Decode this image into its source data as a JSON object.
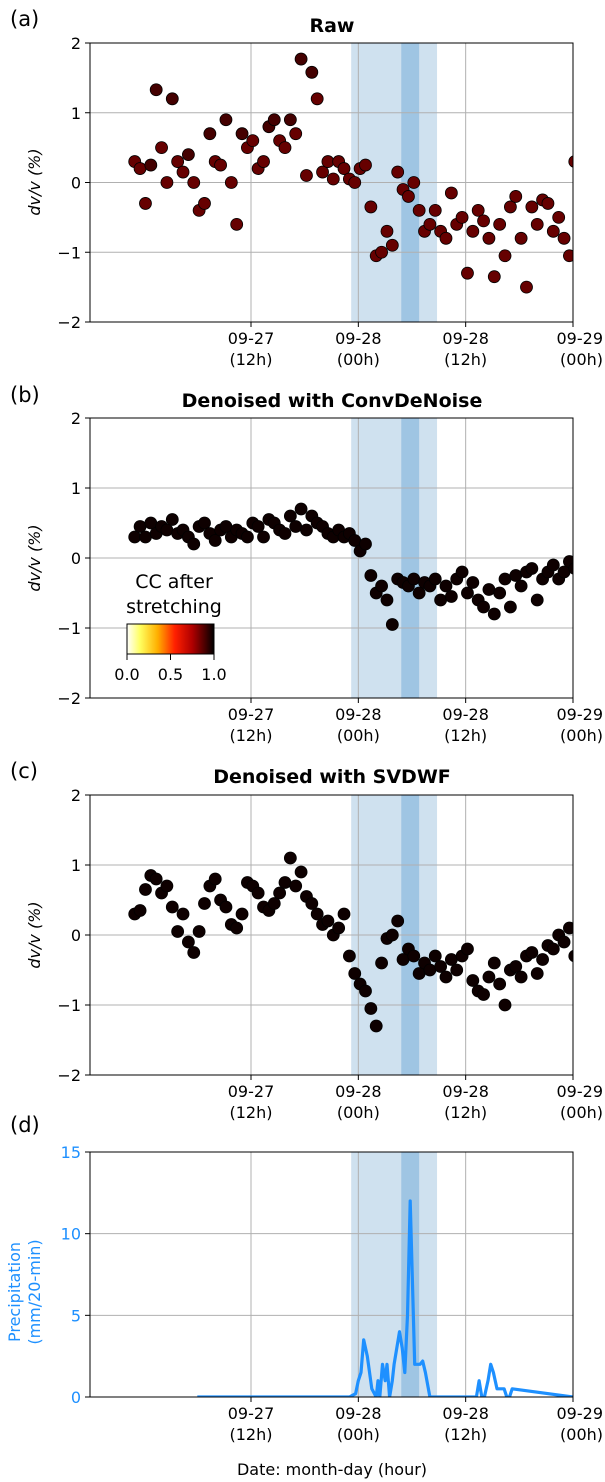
{
  "colors": {
    "light_band": "#cfe1ef",
    "dark_band": "#9fc5e3",
    "precip_line": "#1e90ff",
    "grid": "#b0b0b0",
    "marker_edge": "#000000"
  },
  "chart_data": [
    {
      "type": "scatter",
      "panel_label": "(a)",
      "title": "Raw",
      "ylabel": "dv/v (%)",
      "xlabel": "",
      "ylim": [
        -2,
        2
      ],
      "yticks": [
        "2",
        "1",
        "0",
        "−1",
        "−2"
      ],
      "xticks": [
        {
          "line1": "09-27",
          "line2": "(12h)"
        },
        {
          "line1": "09-28",
          "line2": "(00h)"
        },
        {
          "line1": "09-28",
          "line2": "(12h)"
        },
        {
          "line1": "09-29",
          "line2": "(00h)"
        }
      ],
      "grid": true,
      "shaded_periods_hours": {
        "light": [
          -0.8,
          8.8
        ],
        "dark": [
          4.8,
          6.8
        ]
      },
      "series": [
        {
          "x_hours": [
            -25.0,
            -24.4,
            -23.8,
            -23.2,
            -22.6,
            -22.0,
            -21.4,
            -20.8,
            -20.2,
            -19.6,
            -19.0,
            -18.4,
            -17.8,
            -17.2,
            -16.6,
            -16.0,
            -15.4,
            -14.8,
            -14.2,
            -13.6,
            -13.0,
            -12.4,
            -11.8,
            -11.2,
            -10.6,
            -10.0,
            -9.4,
            -8.8,
            -8.2,
            -7.6,
            -7.0,
            -6.4,
            -5.8,
            -5.2,
            -4.6,
            -4.0,
            -3.4,
            -2.8,
            -2.2,
            -1.6,
            -1.0,
            -0.4,
            0.2,
            0.8,
            1.4,
            2.0,
            2.6,
            3.2,
            3.8,
            4.4,
            5.0,
            5.6,
            6.2,
            6.8,
            7.4,
            8.0,
            8.6,
            9.2,
            9.8,
            10.4,
            11.0,
            11.6,
            12.2,
            12.8,
            13.4,
            14.0,
            14.6,
            15.2,
            15.8,
            16.4,
            17.0,
            17.6,
            18.2,
            18.8,
            19.4,
            20.0,
            20.6,
            21.2,
            21.8,
            22.4,
            23.0,
            23.6,
            24.2,
            24.8
          ],
          "y": [
            0.3,
            0.2,
            -0.3,
            0.25,
            1.33,
            0.5,
            0.0,
            1.2,
            0.3,
            0.15,
            0.4,
            0.0,
            -0.4,
            -0.3,
            0.7,
            0.3,
            0.25,
            0.9,
            0.0,
            -0.6,
            0.7,
            0.5,
            0.6,
            0.2,
            0.3,
            0.8,
            0.9,
            0.6,
            0.5,
            0.9,
            0.7,
            1.77,
            0.1,
            1.58,
            1.2,
            0.15,
            0.3,
            0.05,
            0.3,
            0.2,
            0.05,
            0.0,
            0.2,
            0.25,
            -0.35,
            -1.05,
            -1.0,
            -0.7,
            -0.9,
            0.15,
            -0.1,
            -0.2,
            0.0,
            -0.4,
            -0.7,
            -0.6,
            -0.4,
            -0.7,
            -0.8,
            -0.15,
            -0.6,
            -0.5,
            -1.3,
            -0.7,
            -0.4,
            -0.55,
            -0.8,
            -1.35,
            -0.6,
            -1.05,
            -0.35,
            -0.2,
            -0.8,
            -1.5,
            -0.35,
            -0.6,
            -0.25,
            -0.3,
            -0.7,
            -0.5,
            -0.8,
            -1.05,
            0.3,
            -0.9
          ],
          "cc": [
            0.85,
            0.85,
            0.85,
            0.9,
            0.9,
            0.85,
            0.85,
            0.9,
            0.85,
            0.85,
            0.9,
            0.85,
            0.85,
            0.85,
            0.9,
            0.85,
            0.85,
            0.9,
            0.85,
            0.85,
            0.9,
            0.85,
            0.85,
            0.85,
            0.85,
            0.9,
            0.9,
            0.85,
            0.85,
            0.9,
            0.85,
            0.9,
            0.85,
            0.9,
            0.85,
            0.85,
            0.85,
            0.85,
            0.85,
            0.85,
            0.85,
            0.85,
            0.85,
            0.85,
            0.85,
            0.85,
            0.85,
            0.85,
            0.85,
            0.85,
            0.85,
            0.85,
            0.85,
            0.85,
            0.85,
            0.85,
            0.85,
            0.85,
            0.85,
            0.85,
            0.85,
            0.85,
            0.85,
            0.85,
            0.85,
            0.85,
            0.85,
            0.85,
            0.85,
            0.85,
            0.85,
            0.85,
            0.85,
            0.85,
            0.85,
            0.85,
            0.85,
            0.85,
            0.85,
            0.85,
            0.85,
            0.85,
            0.85,
            0.85
          ]
        }
      ]
    },
    {
      "type": "scatter",
      "panel_label": "(b)",
      "title": "Denoised with ConvDeNoise",
      "ylabel": "dv/v (%)",
      "xlabel": "",
      "ylim": [
        -2,
        2
      ],
      "yticks": [
        "2",
        "1",
        "0",
        "−1",
        "−2"
      ],
      "xticks": [
        {
          "line1": "09-27",
          "line2": "(12h)"
        },
        {
          "line1": "09-28",
          "line2": "(00h)"
        },
        {
          "line1": "09-28",
          "line2": "(12h)"
        },
        {
          "line1": "09-29",
          "line2": "(00h)"
        }
      ],
      "grid": true,
      "shaded_periods_hours": {
        "light": [
          -0.8,
          8.8
        ],
        "dark": [
          4.8,
          6.8
        ]
      },
      "colorbar": {
        "label_line1": "CC after",
        "label_line2": "stretching",
        "tick_labels": [
          "0.0",
          "0.5",
          "1.0"
        ],
        "range": [
          0,
          1
        ],
        "colormap": "hot_r"
      },
      "series": [
        {
          "x_hours": [
            -25.0,
            -24.4,
            -23.8,
            -23.2,
            -22.6,
            -22.0,
            -21.4,
            -20.8,
            -20.2,
            -19.6,
            -19.0,
            -18.4,
            -17.8,
            -17.2,
            -16.6,
            -16.0,
            -15.4,
            -14.8,
            -14.2,
            -13.6,
            -13.0,
            -12.4,
            -11.8,
            -11.2,
            -10.6,
            -10.0,
            -9.4,
            -8.8,
            -8.2,
            -7.6,
            -7.0,
            -6.4,
            -5.8,
            -5.2,
            -4.6,
            -4.0,
            -3.4,
            -2.8,
            -2.2,
            -1.6,
            -1.0,
            -0.4,
            0.2,
            0.8,
            1.4,
            2.0,
            2.6,
            3.2,
            3.8,
            4.4,
            5.0,
            5.6,
            6.2,
            6.8,
            7.4,
            8.0,
            8.6,
            9.2,
            9.8,
            10.4,
            11.0,
            11.6,
            12.2,
            12.8,
            13.4,
            14.0,
            14.6,
            15.2,
            15.8,
            16.4,
            17.0,
            17.6,
            18.2,
            18.8,
            19.4,
            20.0,
            20.6,
            21.2,
            21.8,
            22.4,
            23.0,
            23.6,
            24.2,
            24.8
          ],
          "y": [
            0.3,
            0.45,
            0.3,
            0.5,
            0.35,
            0.45,
            0.4,
            0.55,
            0.35,
            0.4,
            0.3,
            0.2,
            0.45,
            0.5,
            0.35,
            0.25,
            0.4,
            0.45,
            0.3,
            0.4,
            0.35,
            0.3,
            0.5,
            0.45,
            0.3,
            0.55,
            0.5,
            0.4,
            0.35,
            0.6,
            0.45,
            0.7,
            0.4,
            0.6,
            0.5,
            0.45,
            0.35,
            0.3,
            0.4,
            0.3,
            0.35,
            0.25,
            0.1,
            0.2,
            -0.25,
            -0.5,
            -0.4,
            -0.6,
            -0.95,
            -0.3,
            -0.35,
            -0.4,
            -0.3,
            -0.5,
            -0.35,
            -0.4,
            -0.3,
            -0.6,
            -0.4,
            -0.55,
            -0.3,
            -0.2,
            -0.5,
            -0.35,
            -0.6,
            -0.7,
            -0.45,
            -0.8,
            -0.5,
            -0.3,
            -0.7,
            -0.25,
            -0.4,
            -0.2,
            -0.15,
            -0.6,
            -0.3,
            -0.2,
            -0.1,
            -0.3,
            -0.2,
            -0.05,
            -0.15,
            -0.3
          ],
          "cc": [
            0.98,
            0.98,
            0.98,
            0.98,
            0.98,
            0.98,
            0.98,
            0.98,
            0.98,
            0.98,
            0.98,
            0.98,
            0.98,
            0.98,
            0.98,
            0.98,
            0.98,
            0.98,
            0.98,
            0.98,
            0.98,
            0.98,
            0.98,
            0.98,
            0.98,
            0.98,
            0.98,
            0.98,
            0.98,
            0.98,
            0.98,
            0.98,
            0.98,
            0.98,
            0.98,
            0.98,
            0.98,
            0.98,
            0.98,
            0.98,
            0.98,
            0.98,
            0.98,
            0.98,
            0.98,
            0.98,
            0.98,
            0.98,
            0.98,
            0.98,
            0.98,
            0.98,
            0.98,
            0.98,
            0.98,
            0.98,
            0.98,
            0.98,
            0.98,
            0.98,
            0.98,
            0.98,
            0.98,
            0.98,
            0.98,
            0.98,
            0.98,
            0.98,
            0.98,
            0.98,
            0.98,
            0.98,
            0.98,
            0.98,
            0.98,
            0.98,
            0.98,
            0.98,
            0.98,
            0.98,
            0.98,
            0.98,
            0.98,
            0.98
          ]
        }
      ]
    },
    {
      "type": "scatter",
      "panel_label": "(c)",
      "title": "Denoised with SVDWF",
      "ylabel": "dv/v (%)",
      "xlabel": "",
      "ylim": [
        -2,
        2
      ],
      "yticks": [
        "2",
        "1",
        "0",
        "−1",
        "−2"
      ],
      "xticks": [
        {
          "line1": "09-27",
          "line2": "(12h)"
        },
        {
          "line1": "09-28",
          "line2": "(00h)"
        },
        {
          "line1": "09-28",
          "line2": "(12h)"
        },
        {
          "line1": "09-29",
          "line2": "(00h)"
        }
      ],
      "grid": true,
      "shaded_periods_hours": {
        "light": [
          -0.8,
          8.8
        ],
        "dark": [
          4.8,
          6.8
        ]
      },
      "series": [
        {
          "x_hours": [
            -25.0,
            -24.4,
            -23.8,
            -23.2,
            -22.6,
            -22.0,
            -21.4,
            -20.8,
            -20.2,
            -19.6,
            -19.0,
            -18.4,
            -17.8,
            -17.2,
            -16.6,
            -16.0,
            -15.4,
            -14.8,
            -14.2,
            -13.6,
            -13.0,
            -12.4,
            -11.8,
            -11.2,
            -10.6,
            -10.0,
            -9.4,
            -8.8,
            -8.2,
            -7.6,
            -7.0,
            -6.4,
            -5.8,
            -5.2,
            -4.6,
            -4.0,
            -3.4,
            -2.8,
            -2.2,
            -1.6,
            -1.0,
            -0.4,
            0.2,
            0.8,
            1.4,
            2.0,
            2.6,
            3.2,
            3.8,
            4.4,
            5.0,
            5.6,
            6.2,
            6.8,
            7.4,
            8.0,
            8.6,
            9.2,
            9.8,
            10.4,
            11.0,
            11.6,
            12.2,
            12.8,
            13.4,
            14.0,
            14.6,
            15.2,
            15.8,
            16.4,
            17.0,
            17.6,
            18.2,
            18.8,
            19.4,
            20.0,
            20.6,
            21.2,
            21.8,
            22.4,
            23.0,
            23.6,
            24.2,
            24.8
          ],
          "y": [
            0.3,
            0.35,
            0.65,
            0.85,
            0.8,
            0.6,
            0.7,
            0.4,
            0.05,
            0.3,
            -0.1,
            -0.25,
            0.05,
            0.45,
            0.7,
            0.8,
            0.5,
            0.4,
            0.15,
            0.1,
            0.3,
            0.75,
            0.7,
            0.6,
            0.4,
            0.35,
            0.45,
            0.6,
            0.75,
            1.1,
            0.7,
            0.9,
            0.55,
            0.45,
            0.3,
            0.15,
            0.2,
            0.0,
            0.1,
            0.3,
            -0.3,
            -0.55,
            -0.7,
            -0.8,
            -1.05,
            -1.3,
            -0.4,
            -0.05,
            0.0,
            0.2,
            -0.35,
            -0.2,
            -0.3,
            -0.55,
            -0.4,
            -0.5,
            -0.3,
            -0.45,
            -0.6,
            -0.35,
            -0.5,
            -0.3,
            -0.2,
            -0.65,
            -0.8,
            -0.85,
            -0.6,
            -0.4,
            -0.7,
            -1.0,
            -0.5,
            -0.45,
            -0.6,
            -0.3,
            -0.25,
            -0.55,
            -0.35,
            -0.15,
            -0.2,
            0.0,
            -0.1,
            0.1,
            -0.3,
            -0.5
          ],
          "cc": [
            0.98,
            0.98,
            0.98,
            0.98,
            0.98,
            0.98,
            0.98,
            0.98,
            0.98,
            0.98,
            0.98,
            0.98,
            0.98,
            0.98,
            0.98,
            0.98,
            0.98,
            0.98,
            0.98,
            0.98,
            0.98,
            0.98,
            0.98,
            0.98,
            0.98,
            0.98,
            0.98,
            0.98,
            0.98,
            0.98,
            0.98,
            0.98,
            0.98,
            0.98,
            0.98,
            0.98,
            0.98,
            0.98,
            0.98,
            0.98,
            0.98,
            0.98,
            0.98,
            0.98,
            0.98,
            0.98,
            0.98,
            0.98,
            0.98,
            0.98,
            0.98,
            0.98,
            0.98,
            0.98,
            0.98,
            0.98,
            0.98,
            0.98,
            0.98,
            0.98,
            0.98,
            0.98,
            0.98,
            0.98,
            0.98,
            0.98,
            0.98,
            0.98,
            0.98,
            0.98,
            0.98,
            0.98,
            0.98,
            0.98,
            0.98,
            0.98,
            0.98,
            0.98,
            0.98,
            0.98,
            0.98,
            0.98,
            0.98,
            0.98
          ]
        }
      ]
    },
    {
      "type": "line",
      "panel_label": "(d)",
      "title": "",
      "ylabel_line1": "Precipitation",
      "ylabel_line2": "(mm/20-min)",
      "xlabel": "Date: month-day (hour)",
      "ylim": [
        0,
        15
      ],
      "yticks": [
        "15",
        "10",
        "5",
        "0"
      ],
      "xticks": [
        {
          "line1": "09-27",
          "line2": "(12h)"
        },
        {
          "line1": "09-28",
          "line2": "(00h)"
        },
        {
          "line1": "09-28",
          "line2": "(12h)"
        },
        {
          "line1": "09-29",
          "line2": "(00h)"
        }
      ],
      "grid": true,
      "shaded_periods_hours": {
        "light": [
          -0.8,
          8.8
        ],
        "dark": [
          4.8,
          6.8
        ]
      },
      "series": [
        {
          "x_hours": [
            -18.0,
            -1.0,
            -0.3,
            0.0,
            0.3,
            0.6,
            1.0,
            1.5,
            2.0,
            2.2,
            2.4,
            2.7,
            3.0,
            3.2,
            3.5,
            3.8,
            4.0,
            4.3,
            4.6,
            4.9,
            5.2,
            5.5,
            5.8,
            6.0,
            6.3,
            6.6,
            6.9,
            7.2,
            7.5,
            8.0,
            12.0,
            13.2,
            13.5,
            13.8,
            14.1,
            14.5,
            14.8,
            15.1,
            15.5,
            15.8,
            16.3,
            16.6,
            16.9,
            17.2,
            24.0
          ],
          "y": [
            0.0,
            0.0,
            0.2,
            1.0,
            1.5,
            3.5,
            2.5,
            0.5,
            0.0,
            1.0,
            0.0,
            2.0,
            1.0,
            2.0,
            0.0,
            1.0,
            2.0,
            3.0,
            4.0,
            3.0,
            1.5,
            5.0,
            12.0,
            8.0,
            2.0,
            2.0,
            2.0,
            2.2,
            1.5,
            0.0,
            0.0,
            0.0,
            1.0,
            0.0,
            0.0,
            1.0,
            2.0,
            1.5,
            0.5,
            0.5,
            0.5,
            0.0,
            0.0,
            0.5,
            0.0
          ]
        }
      ]
    }
  ]
}
